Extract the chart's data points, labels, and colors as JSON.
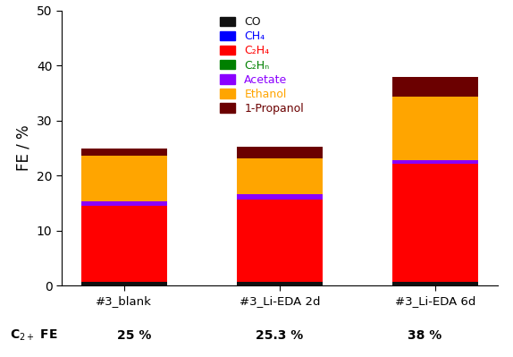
{
  "categories": [
    "#3_blank",
    "#3_Li-EDA 2d",
    "#3_Li-EDA 6d"
  ],
  "series": {
    "CO": [
      0.7,
      0.7,
      0.7
    ],
    "CH4": [
      0.0,
      0.0,
      0.0
    ],
    "C2H4": [
      13.8,
      15.0,
      21.5
    ],
    "C2Hn": [
      0.0,
      0.0,
      0.0
    ],
    "Acetate": [
      0.8,
      1.0,
      0.6
    ],
    "Ethanol": [
      8.3,
      6.5,
      11.5
    ],
    "1-Propanol": [
      1.4,
      2.1,
      3.7
    ]
  },
  "colors": {
    "CO": "#111111",
    "CH4": "#0000ff",
    "C2H4": "#ff0000",
    "C2Hn": "#008000",
    "Acetate": "#8b00ff",
    "Ethanol": "#ffa500",
    "1-Propanol": "#6b0000"
  },
  "legend_labels": [
    "CO",
    "CH₄",
    "C₂H₄",
    "C₂Hₙ",
    "Acetate",
    "Ethanol",
    "1-Propanol"
  ],
  "legend_text_colors": [
    "#111111",
    "#0000ff",
    "#ff0000",
    "#008000",
    "#8b00ff",
    "#ffa500",
    "#6b0000"
  ],
  "legend_patch_colors": [
    "#111111",
    "#0000ff",
    "#ff0000",
    "#008000",
    "#8b00ff",
    "#ffa500",
    "#6b0000"
  ],
  "ylabel": "FE / %",
  "ylim": [
    0,
    50
  ],
  "yticks": [
    0,
    10,
    20,
    30,
    40,
    50
  ],
  "c2plus_label": "C$_{2+}$ FE",
  "c2plus_values": [
    "25 %",
    "25.3 %",
    "38 %"
  ],
  "bar_width": 0.55,
  "background_color": "#ffffff"
}
